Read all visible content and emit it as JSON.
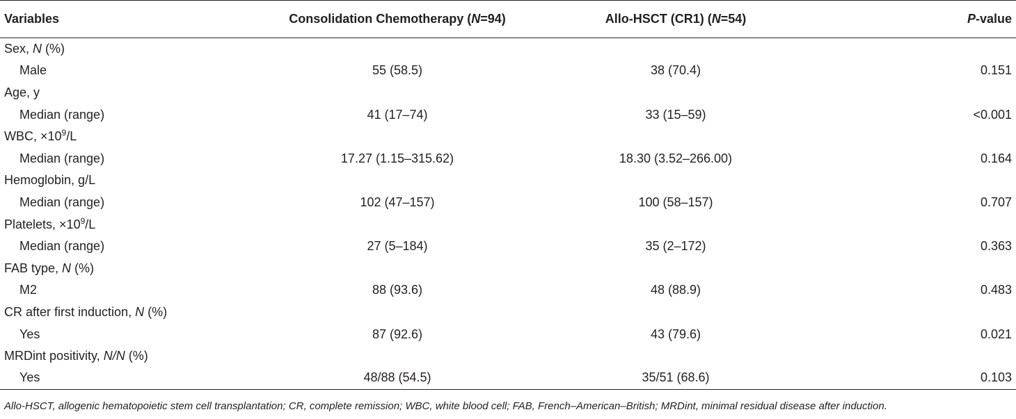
{
  "table": {
    "headers": {
      "variables": "Variables",
      "chemo": {
        "prefix": "Consolidation Chemotherapy (",
        "n_italic": "N",
        "suffix": "=94)"
      },
      "hsct": {
        "prefix": "Allo-HSCT (CR1) (",
        "n_italic": "N",
        "suffix": "=54)"
      },
      "pvalue": {
        "p_italic": "P",
        "suffix": "-value"
      }
    },
    "rows": [
      {
        "group": {
          "label": "Sex, ",
          "italic": "N",
          "after": " (%)"
        },
        "sub": "Male",
        "chemo": "55 (58.5)",
        "hsct": "38 (70.4)",
        "p": "0.151"
      },
      {
        "group": {
          "label": "Age, y",
          "italic": "",
          "after": ""
        },
        "sub": "Median (range)",
        "chemo": "41 (17–74)",
        "hsct": "33 (15–59)",
        "p": "<0.001"
      },
      {
        "group": {
          "label": "WBC, ×10",
          "sup": "9",
          "after": "/L"
        },
        "sub": "Median (range)",
        "chemo": "17.27 (1.15–315.62)",
        "hsct": "18.30 (3.52–266.00)",
        "p": "0.164"
      },
      {
        "group": {
          "label": "Hemoglobin, g/L",
          "italic": "",
          "after": ""
        },
        "sub": "Median (range)",
        "chemo": "102 (47–157)",
        "hsct": "100 (58–157)",
        "p": "0.707"
      },
      {
        "group": {
          "label": "Platelets, ×10",
          "sup": "9",
          "after": "/L"
        },
        "sub": "Median (range)",
        "chemo": "27 (5–184)",
        "hsct": "35 (2–172)",
        "p": "0.363"
      },
      {
        "group": {
          "label": "FAB type, ",
          "italic": "N",
          "after": " (%)"
        },
        "sub": "M2",
        "chemo": "88 (93.6)",
        "hsct": "48 (88.9)",
        "p": "0.483"
      },
      {
        "group": {
          "label": "CR after first induction, ",
          "italic": "N",
          "after": " (%)"
        },
        "sub": "Yes",
        "chemo": "87 (92.6)",
        "hsct": "43 (79.6)",
        "p": "0.021"
      },
      {
        "group": {
          "label": "MRDint positivity, ",
          "italic": "N/N",
          "after": " (%)"
        },
        "sub": "Yes",
        "chemo": "48/88 (54.5)",
        "hsct": "35/51 (68.6)",
        "p": "0.103"
      }
    ]
  },
  "footnote": "Allo-HSCT, allogenic hematopoietic stem cell transplantation; CR, complete remission; WBC, white blood cell; FAB, French–American–British; MRDint, minimal residual disease after induction."
}
